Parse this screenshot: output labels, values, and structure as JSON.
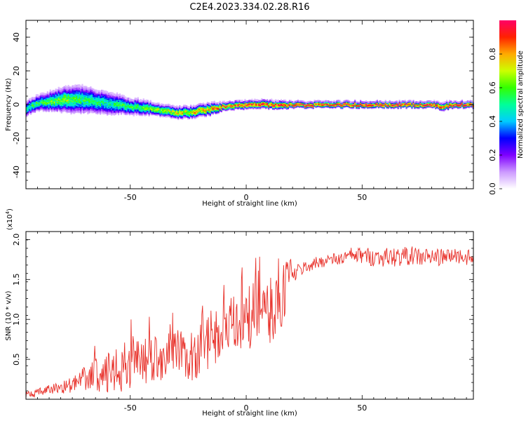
{
  "title": "C2E4.2023.334.02.28.R16",
  "colorbar": {
    "label": "Normalized spectral amplitude",
    "ticks": [
      "0.0",
      "0.2",
      "0.4",
      "0.6",
      "0.8"
    ],
    "tick_values": [
      0.0,
      0.2,
      0.4,
      0.6,
      0.8
    ],
    "range": [
      0,
      1
    ],
    "colormap": [
      "#ffffff",
      "#cc99ff",
      "#7f00ff",
      "#0000ff",
      "#00ccff",
      "#00ff99",
      "#33ff00",
      "#ccff00",
      "#ffaa00",
      "#ff2200",
      "#ff0066"
    ]
  },
  "chart_data": [
    {
      "type": "heatmap",
      "xlabel": "Height of straight line (km)",
      "ylabel": "Frequency (Hz)",
      "xlim": [
        -95,
        98
      ],
      "ylim": [
        -50,
        50
      ],
      "xticks": [
        -50,
        0,
        50
      ],
      "yticks": [
        -40,
        -20,
        0,
        20,
        40
      ],
      "grid": false,
      "ridge": {
        "x": [
          -95,
          -90,
          -85,
          -80,
          -75,
          -70,
          -65,
          -60,
          -55,
          -50,
          -45,
          -40,
          -35,
          -30,
          -25,
          -20,
          -15,
          -10,
          -5,
          0,
          5,
          10,
          15,
          20,
          30,
          40,
          50,
          60,
          70,
          80,
          85,
          90,
          98
        ],
        "y": [
          -2,
          1,
          2,
          3,
          3,
          3,
          2,
          1,
          0,
          -1,
          -1.5,
          -2.5,
          -3.5,
          -4.5,
          -4.5,
          -3.5,
          -2.5,
          -1,
          -0.5,
          0,
          0,
          0,
          0,
          0,
          0,
          0,
          0,
          0,
          0,
          0,
          -1,
          0,
          0
        ],
        "amplitude": [
          0.5,
          0.55,
          0.6,
          0.65,
          0.6,
          0.55,
          0.55,
          0.5,
          0.55,
          0.55,
          0.6,
          0.65,
          0.7,
          0.75,
          0.75,
          0.8,
          0.85,
          0.9,
          0.9,
          0.95,
          0.95,
          0.95,
          1.0,
          1.0,
          1.0,
          1.0,
          1.0,
          1.0,
          1.0,
          1.0,
          0.9,
          1.0,
          1.0
        ],
        "halfwidth_hz": [
          4,
          4,
          5,
          6,
          7,
          7,
          6,
          6,
          5,
          4,
          4,
          3,
          3,
          3,
          3,
          3,
          3,
          2,
          2,
          2,
          2,
          2,
          2,
          1.5,
          1.5,
          1.5,
          1.5,
          1.5,
          1.5,
          1.5,
          2,
          1.5,
          1.5
        ]
      }
    },
    {
      "type": "line",
      "xlabel": "Height of straight line (km)",
      "ylabel": "SNR (10 * v/v)",
      "y_multiplier": "(x10",
      "y_exponent": "4",
      "y_multiplier_close": ")",
      "xlim": [
        -95,
        98
      ],
      "ylim": [
        0,
        2.1
      ],
      "xticks": [
        -50,
        0,
        50
      ],
      "yticks": [
        "0.5",
        "1.0",
        "1.5",
        "2.0"
      ],
      "ytick_values": [
        0.5,
        1.0,
        1.5,
        2.0
      ],
      "grid": false,
      "color": "#e8322b",
      "series": [
        {
          "x": [
            -95,
            -90,
            -85,
            -80,
            -75,
            -70,
            -65,
            -60,
            -55,
            -50,
            -45,
            -40,
            -35,
            -30,
            -25,
            -20,
            -15,
            -10,
            -5,
            0,
            5,
            10,
            15,
            20,
            25,
            30,
            35,
            40,
            45,
            50,
            55,
            60,
            65,
            70,
            75,
            80,
            85,
            90,
            95,
            98
          ],
          "y": [
            0.05,
            0.08,
            0.12,
            0.15,
            0.18,
            0.25,
            0.3,
            0.3,
            0.35,
            0.45,
            0.5,
            0.5,
            0.55,
            0.55,
            0.5,
            0.55,
            0.75,
            0.85,
            0.9,
            1.0,
            1.1,
            1.05,
            1.3,
            1.55,
            1.65,
            1.7,
            1.75,
            1.75,
            1.8,
            1.8,
            1.78,
            1.78,
            1.78,
            1.8,
            1.78,
            1.78,
            1.78,
            1.8,
            1.78,
            1.75
          ],
          "noise": [
            0.05,
            0.05,
            0.06,
            0.08,
            0.1,
            0.15,
            0.2,
            0.25,
            0.3,
            0.35,
            0.3,
            0.3,
            0.3,
            0.3,
            0.28,
            0.3,
            0.35,
            0.4,
            0.4,
            0.4,
            0.4,
            0.45,
            0.45,
            0.12,
            0.08,
            0.08,
            0.08,
            0.08,
            0.1,
            0.1,
            0.12,
            0.12,
            0.12,
            0.12,
            0.12,
            0.12,
            0.1,
            0.1,
            0.1,
            0.1
          ]
        }
      ]
    }
  ]
}
